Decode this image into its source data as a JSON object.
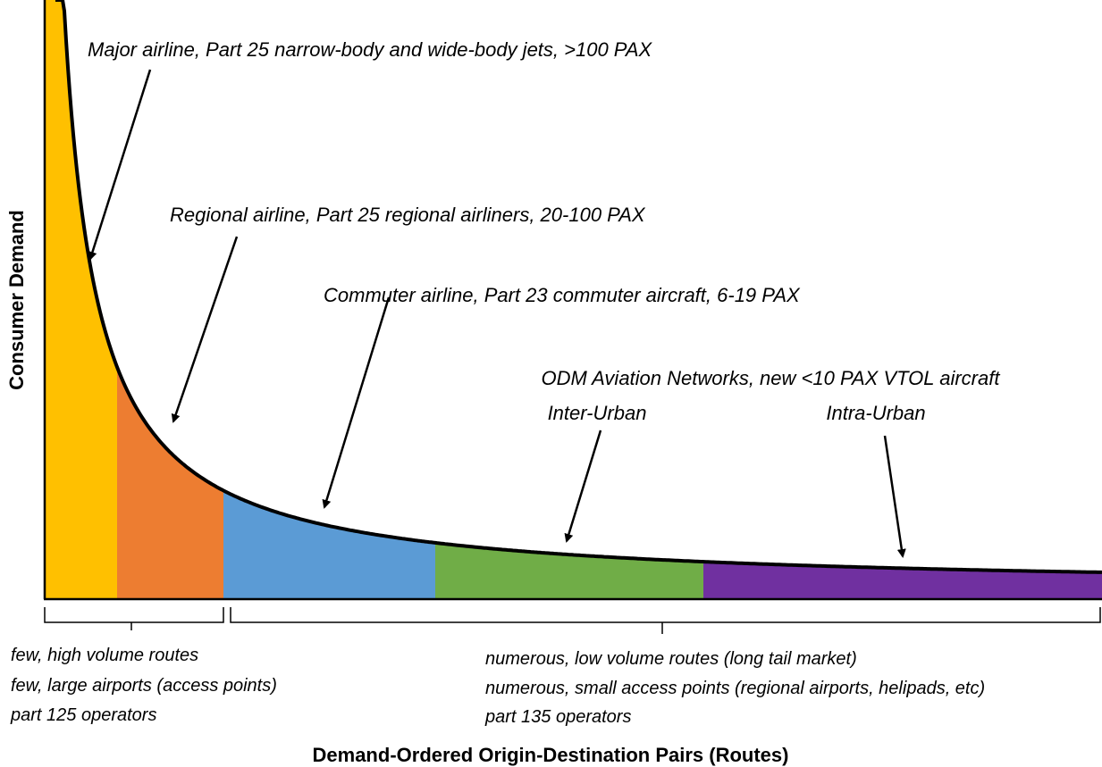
{
  "axes": {
    "y_label": "Consumer Demand",
    "x_label": "Demand-Ordered Origin-Destination Pairs (Routes)"
  },
  "annotations": [
    "Major airline, Part 25 narrow-body and wide-body jets, >100 PAX",
    "Regional airline, Part 25 regional airliners, 20-100 PAX",
    "Commuter airline, Part 23 commuter aircraft, 6-19 PAX",
    "ODM Aviation Networks, new <10 PAX VTOL aircraft",
    "Inter-Urban",
    "Intra-Urban"
  ],
  "notes": {
    "head": [
      "few, high volume routes",
      "few, large airports (access points)",
      "part 125 operators"
    ],
    "tail": [
      "numerous, low volume routes (long tail market)",
      "numerous, small access points (regional airports, helipads, etc)",
      "part 135 operators"
    ]
  }
}
